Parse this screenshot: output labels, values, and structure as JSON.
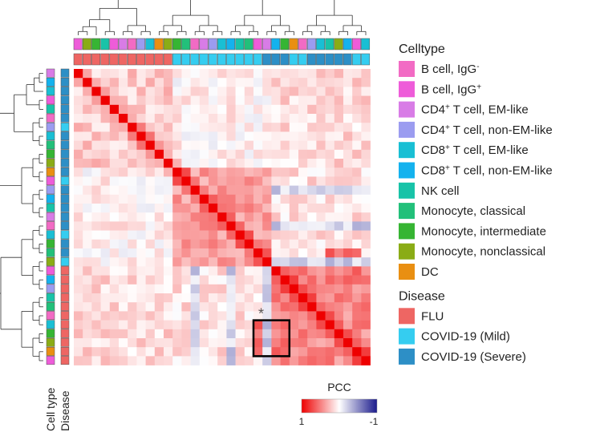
{
  "colors": {
    "celltype": {
      "B cell, IgG-": "#f26bc4",
      "B cell, IgG+": "#ee5cd9",
      "CD4+ T cell, EM-like": "#d87ce6",
      "CD4+ T cell, non-EM-like": "#9b9cf0",
      "CD8+ T cell, EM-like": "#19bfd4",
      "CD8+ T cell, non-EM-like": "#14b2ee",
      "NK cell": "#18c3a8",
      "Monocyte, classical": "#22c07a",
      "Monocyte, intermediate": "#36b533",
      "Monocyte, nonclassical": "#8aac16",
      "DC": "#e98f12"
    },
    "disease": {
      "FLU": "#ee6663",
      "COVID-19 (Mild)": "#35cdf0",
      "COVID-19 (Severe)": "#2d8fc6"
    },
    "colorbar_high": "#ee0000",
    "colorbar_mid": "#ffffff",
    "colorbar_low": "#1a1a8c",
    "highlight_box": "#000000"
  },
  "chart_data": {
    "type": "heatmap",
    "n_samples": 33,
    "value_name": "PCC",
    "colorbar": {
      "title": "PCC",
      "min_label": "1",
      "max_label": "-1",
      "range": [
        1,
        -1
      ]
    },
    "row_annotation_labels": [
      "Cell type",
      "Disease"
    ],
    "legend": {
      "celltype_title": "Celltype",
      "celltype_entries": [
        {
          "key": "B cell, IgG-",
          "pre": "B cell, IgG",
          "sup": "-",
          "post": ""
        },
        {
          "key": "B cell, IgG+",
          "pre": "B cell, IgG",
          "sup": "+",
          "post": ""
        },
        {
          "key": "CD4+ T cell, EM-like",
          "pre": "CD4",
          "sup": "+",
          "post": " T cell, EM-like"
        },
        {
          "key": "CD4+ T cell, non-EM-like",
          "pre": "CD4",
          "sup": "+",
          "post": " T cell, non-EM-like"
        },
        {
          "key": "CD8+ T cell, EM-like",
          "pre": "CD8",
          "sup": "+",
          "post": " T cell, EM-like"
        },
        {
          "key": "CD8+ T cell, non-EM-like",
          "pre": "CD8",
          "sup": "+",
          "post": " T cell, non-EM-like"
        },
        {
          "key": "NK cell",
          "pre": "NK cell",
          "sup": "",
          "post": ""
        },
        {
          "key": "Monocyte, classical",
          "pre": "Monocyte, classical",
          "sup": "",
          "post": ""
        },
        {
          "key": "Monocyte, intermediate",
          "pre": "Monocyte, intermediate",
          "sup": "",
          "post": ""
        },
        {
          "key": "Monocyte, nonclassical",
          "pre": "Monocyte, nonclassical",
          "sup": "",
          "post": ""
        },
        {
          "key": "DC",
          "pre": "DC",
          "sup": "",
          "post": ""
        }
      ],
      "disease_title": "Disease",
      "disease_entries": [
        "FLU",
        "COVID-19 (Mild)",
        "COVID-19 (Severe)"
      ]
    },
    "column_celltype": [
      "B cell, IgG+",
      "Monocyte, nonclassical",
      "Monocyte, intermediate",
      "NK cell",
      "B cell, IgG+",
      "CD4+ T cell, EM-like",
      "B cell, IgG-",
      "CD4+ T cell, non-EM-like",
      "CD8+ T cell, EM-like",
      "DC",
      "Monocyte, nonclassical",
      "Monocyte, intermediate",
      "Monocyte, classical",
      "B cell, IgG-",
      "CD4+ T cell, EM-like",
      "CD4+ T cell, non-EM-like",
      "CD8+ T cell, EM-like",
      "CD8+ T cell, non-EM-like",
      "NK cell",
      "Monocyte, classical",
      "B cell, IgG+",
      "CD4+ T cell, EM-like",
      "CD8+ T cell, non-EM-like",
      "Monocyte, intermediate",
      "DC",
      "B cell, IgG-",
      "CD4+ T cell, non-EM-like",
      "CD8+ T cell, EM-like",
      "NK cell",
      "Monocyte, nonclassical",
      "CD8+ T cell, non-EM-like",
      "B cell, IgG+",
      "CD8+ T cell, EM-like"
    ],
    "column_disease": [
      "FLU",
      "FLU",
      "FLU",
      "FLU",
      "FLU",
      "FLU",
      "FLU",
      "FLU",
      "FLU",
      "FLU",
      "FLU",
      "COVID-19 (Mild)",
      "COVID-19 (Mild)",
      "COVID-19 (Mild)",
      "COVID-19 (Mild)",
      "COVID-19 (Mild)",
      "COVID-19 (Mild)",
      "COVID-19 (Mild)",
      "COVID-19 (Mild)",
      "COVID-19 (Mild)",
      "COVID-19 (Mild)",
      "COVID-19 (Severe)",
      "COVID-19 (Severe)",
      "COVID-19 (Severe)",
      "COVID-19 (Mild)",
      "COVID-19 (Mild)",
      "COVID-19 (Severe)",
      "COVID-19 (Severe)",
      "COVID-19 (Severe)",
      "COVID-19 (Severe)",
      "COVID-19 (Severe)",
      "COVID-19 (Mild)",
      "COVID-19 (Mild)"
    ],
    "row_celltype": [
      "CD4+ T cell, EM-like",
      "CD8+ T cell, non-EM-like",
      "CD8+ T cell, EM-like",
      "B cell, IgG+",
      "NK cell",
      "B cell, IgG-",
      "CD4+ T cell, non-EM-like",
      "CD8+ T cell, EM-like",
      "Monocyte, classical",
      "Monocyte, intermediate",
      "Monocyte, nonclassical",
      "DC",
      "B cell, IgG+",
      "CD4+ T cell, non-EM-like",
      "CD8+ T cell, non-EM-like",
      "NK cell",
      "CD4+ T cell, EM-like",
      "B cell, IgG-",
      "CD8+ T cell, EM-like",
      "Monocyte, intermediate",
      "Monocyte, classical",
      "Monocyte, nonclassical",
      "B cell, IgG+",
      "CD8+ T cell, non-EM-like",
      "CD4+ T cell, non-EM-like",
      "NK cell",
      "Monocyte, classical",
      "B cell, IgG-",
      "CD8+ T cell, EM-like",
      "Monocyte, intermediate",
      "Monocyte, nonclassical",
      "DC",
      "B cell, IgG+"
    ],
    "row_disease": [
      "COVID-19 (Severe)",
      "COVID-19 (Severe)",
      "COVID-19 (Severe)",
      "COVID-19 (Severe)",
      "COVID-19 (Severe)",
      "COVID-19 (Severe)",
      "COVID-19 (Mild)",
      "COVID-19 (Severe)",
      "COVID-19 (Severe)",
      "COVID-19 (Severe)",
      "COVID-19 (Severe)",
      "COVID-19 (Severe)",
      "COVID-19 (Mild)",
      "COVID-19 (Severe)",
      "COVID-19 (Severe)",
      "COVID-19 (Severe)",
      "COVID-19 (Severe)",
      "COVID-19 (Severe)",
      "COVID-19 (Mild)",
      "COVID-19 (Severe)",
      "COVID-19 (Severe)",
      "COVID-19 (Mild)",
      "FLU",
      "FLU",
      "FLU",
      "FLU",
      "FLU",
      "FLU",
      "FLU",
      "FLU",
      "FLU",
      "FLU",
      "FLU"
    ],
    "block_correlation": {
      "diagonal": 1.0,
      "within_flu": 0.45,
      "within_covid_upper": 0.2,
      "within_covid_lower": 0.38,
      "covid_upper_vs_lower": 0.05,
      "flu_vs_covid_upper": 0.15,
      "flu_vs_covid_lower": 0.12,
      "negative_patch": -0.2,
      "highlight_block_value": 0.55
    },
    "highlight": {
      "mark": "*",
      "rows": [
        28,
        31
      ],
      "cols": [
        20,
        23
      ]
    }
  }
}
